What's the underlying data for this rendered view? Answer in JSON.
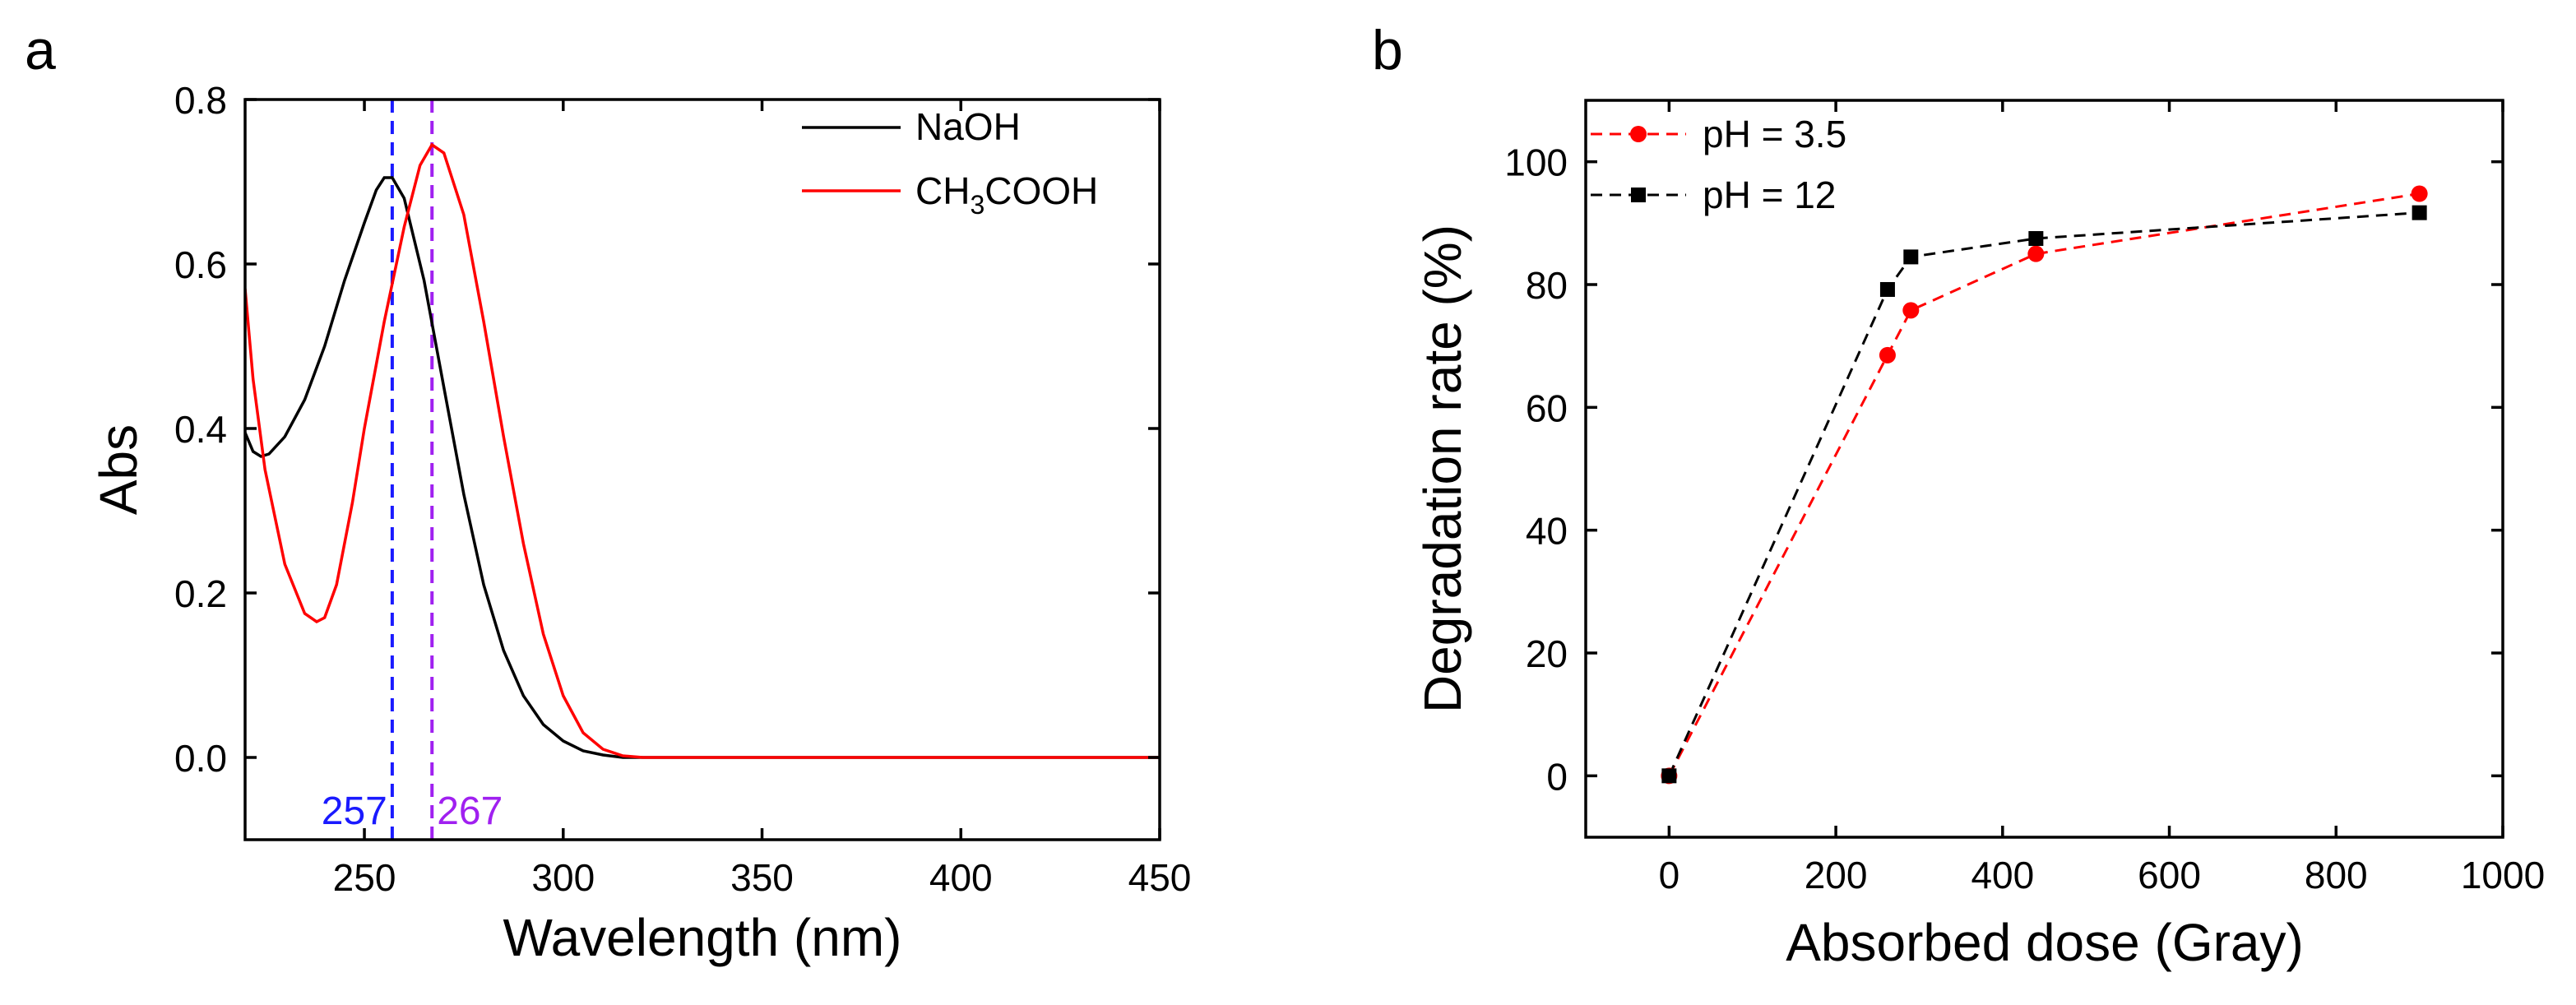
{
  "chart_data": [
    {
      "panel_label": "a",
      "type": "line",
      "title": "",
      "xlabel": "Wavelength (nm)",
      "ylabel": "Abs",
      "xlim": [
        220,
        450
      ],
      "ylim": [
        -0.1,
        0.8
      ],
      "x_ticks": [
        250,
        300,
        350,
        400,
        450
      ],
      "y_ticks": [
        0.0,
        0.2,
        0.4,
        0.6,
        0.8
      ],
      "grid": false,
      "legend_position": "top-right",
      "series": [
        {
          "name": "NaOH",
          "color": "#000000",
          "x": [
            220,
            222,
            224,
            226,
            230,
            235,
            240,
            245,
            250,
            253,
            255,
            257,
            260,
            265,
            270,
            275,
            280,
            285,
            290,
            295,
            300,
            305,
            310,
            315,
            320,
            330,
            350,
            400,
            450
          ],
          "y": [
            0.395,
            0.372,
            0.366,
            0.369,
            0.39,
            0.435,
            0.5,
            0.58,
            0.65,
            0.69,
            0.705,
            0.705,
            0.68,
            0.58,
            0.45,
            0.32,
            0.21,
            0.13,
            0.075,
            0.04,
            0.02,
            0.008,
            0.003,
            0.0,
            0.0,
            0.0,
            0.0,
            0.0,
            0.0
          ]
        },
        {
          "name": "CH3COOH",
          "label_main": "CH",
          "label_sub1": "3",
          "label_rest": "COOH",
          "color": "#ff0000",
          "x": [
            220,
            222,
            225,
            230,
            235,
            238,
            240,
            243,
            247,
            250,
            255,
            260,
            264,
            267,
            270,
            275,
            280,
            285,
            290,
            295,
            300,
            305,
            310,
            315,
            320,
            330,
            350,
            400,
            450
          ],
          "y": [
            0.57,
            0.46,
            0.35,
            0.235,
            0.175,
            0.165,
            0.17,
            0.21,
            0.31,
            0.4,
            0.53,
            0.645,
            0.72,
            0.745,
            0.735,
            0.66,
            0.53,
            0.39,
            0.26,
            0.15,
            0.075,
            0.03,
            0.01,
            0.002,
            0.0,
            0.0,
            0.0,
            0.0,
            0.0
          ]
        }
      ],
      "markers": [
        {
          "x": 257,
          "label": "257",
          "color": "#1a1aff"
        },
        {
          "x": 267,
          "label": "267",
          "color": "#a020f0"
        }
      ]
    },
    {
      "panel_label": "b",
      "type": "line",
      "title": "",
      "xlabel": "Absorbed dose (Gray)",
      "ylabel": "Degradation rate (%)",
      "xlim": [
        -100,
        1000
      ],
      "ylim": [
        -10,
        110
      ],
      "x_ticks": [
        0,
        200,
        400,
        600,
        800,
        1000
      ],
      "y_ticks": [
        0,
        20,
        40,
        60,
        80,
        100
      ],
      "grid": false,
      "legend_position": "top-left",
      "series": [
        {
          "name": "pH = 3.5",
          "color": "#ff0000",
          "marker": "circle",
          "x": [
            0,
            262,
            290,
            440,
            900
          ],
          "y": [
            0,
            68.5,
            75.8,
            85,
            94.8
          ]
        },
        {
          "name": "pH = 12",
          "color": "#000000",
          "marker": "square",
          "x": [
            0,
            262,
            290,
            440,
            900
          ],
          "y": [
            0,
            79.2,
            84.5,
            87.5,
            91.7
          ]
        }
      ]
    }
  ]
}
